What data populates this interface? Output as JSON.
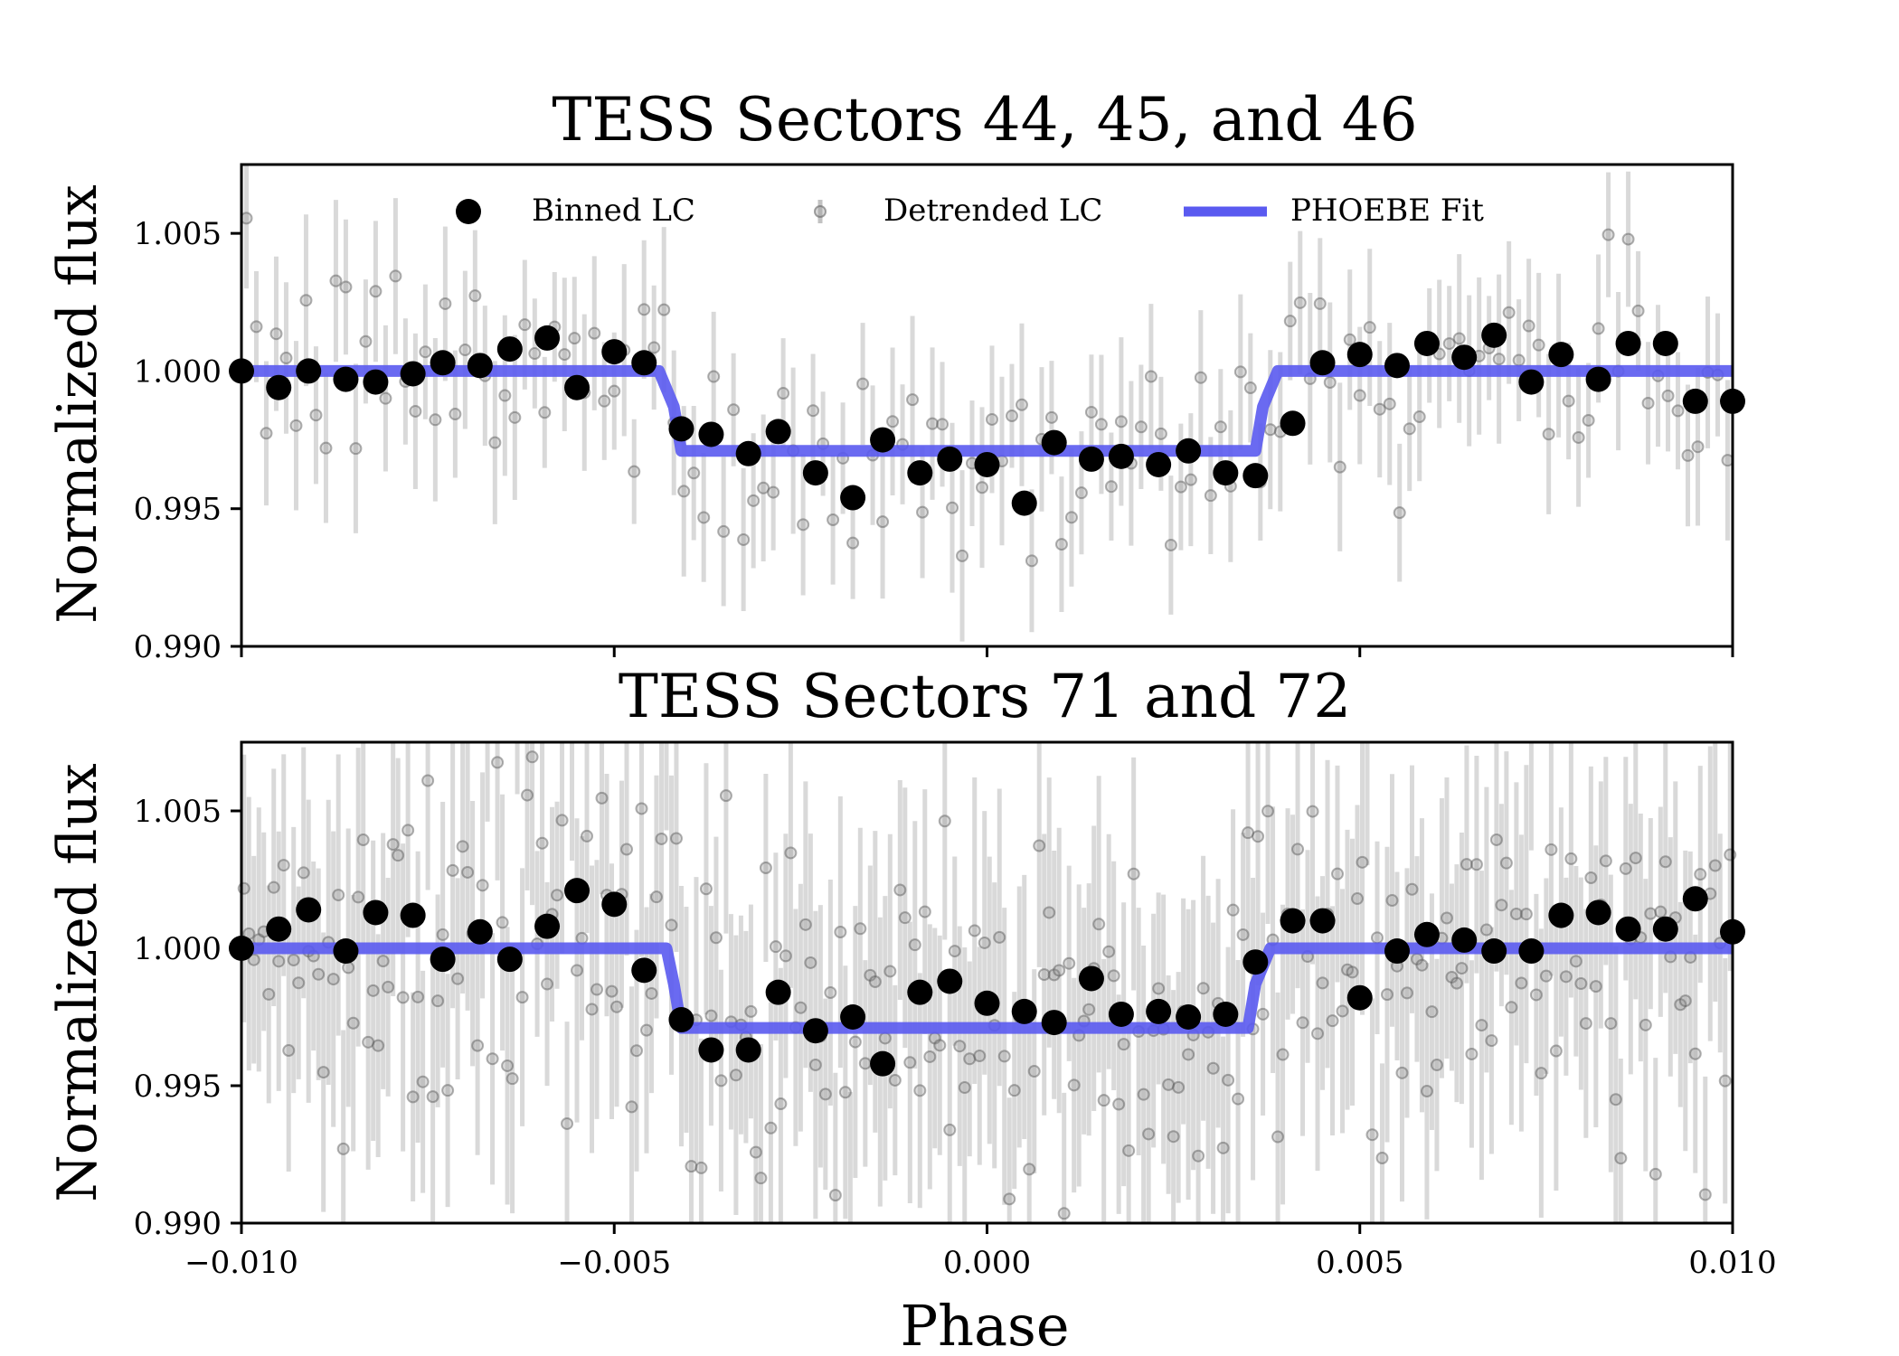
{
  "chart_data": [
    {
      "type": "scatter",
      "title": "TESS Sectors 44, 45, and 46",
      "xlabel": "",
      "ylabel": "Normalized flux",
      "xlim": [
        -0.01,
        0.01
      ],
      "ylim": [
        0.99,
        1.0075
      ],
      "yticks": [
        "0.990",
        "0.995",
        "1.000",
        "1.005"
      ],
      "yticks_values": [
        0.99,
        0.995,
        1.0,
        1.005
      ],
      "xticks_values": [
        -0.01,
        -0.005,
        0.0,
        0.005,
        0.01
      ],
      "legend": {
        "position": "top",
        "entries": [
          {
            "name": "Binned LC",
            "marker": "black-circle"
          },
          {
            "name": "Detrended LC",
            "marker": "gray-circle-errorbar"
          },
          {
            "name": "PHOEBE Fit",
            "marker": "blue-line"
          }
        ]
      },
      "series": [
        {
          "name": "PHOEBE Fit",
          "color": "#5a5af0",
          "x": [
            -0.01,
            -0.0044,
            -0.0042,
            -0.0041,
            0.0036,
            0.0037,
            0.0039,
            0.01
          ],
          "y": [
            1.0,
            1.0,
            0.9987,
            0.9971,
            0.9971,
            0.9987,
            1.0,
            1.0
          ]
        },
        {
          "name": "Binned LC",
          "color": "#000000",
          "x": [
            -0.01,
            -0.0095,
            -0.0091,
            -0.0086,
            -0.0082,
            -0.0077,
            -0.0073,
            -0.0068,
            -0.0064,
            -0.0059,
            -0.0055,
            -0.005,
            -0.0046,
            -0.0041,
            -0.0037,
            -0.0032,
            -0.0028,
            -0.0023,
            -0.0018,
            -0.0014,
            -0.0009,
            -0.0005,
            0.0,
            0.0005,
            0.0009,
            0.0014,
            0.0018,
            0.0023,
            0.0027,
            0.0032,
            0.0036,
            0.0041,
            0.0045,
            0.005,
            0.0055,
            0.0059,
            0.0064,
            0.0068,
            0.0073,
            0.0077,
            0.0082,
            0.0086,
            0.0091,
            0.0095,
            0.01
          ],
          "y": [
            1.0,
            0.9994,
            1.0,
            0.9997,
            0.9996,
            0.9999,
            1.0003,
            1.0002,
            1.0008,
            1.0012,
            0.9994,
            1.0007,
            1.0003,
            0.9979,
            0.9977,
            0.997,
            0.9978,
            0.9963,
            0.9954,
            0.9975,
            0.9963,
            0.9968,
            0.9966,
            0.9952,
            0.9974,
            0.9968,
            0.9969,
            0.9966,
            0.9971,
            0.9963,
            0.9962,
            0.9981,
            1.0003,
            1.0006,
            1.0002,
            1.001,
            1.0005,
            1.0013,
            0.9996,
            1.0006,
            0.9997,
            1.001,
            1.001,
            0.9989,
            0.9989
          ]
        },
        {
          "name": "Detrended LC",
          "color": "#8c8c8c",
          "n_points": 150,
          "typical_error": 0.0025
        }
      ]
    },
    {
      "type": "scatter",
      "title": "TESS Sectors 71 and 72",
      "xlabel": "Phase",
      "ylabel": "Normalized flux",
      "xlim": [
        -0.01,
        0.01
      ],
      "ylim": [
        0.99,
        1.0075
      ],
      "yticks": [
        "0.990",
        "0.995",
        "1.000",
        "1.005"
      ],
      "yticks_values": [
        0.99,
        0.995,
        1.0,
        1.005
      ],
      "xticks": [
        "−0.010",
        "−0.005",
        "0.000",
        "0.005",
        "0.010"
      ],
      "xticks_values": [
        -0.01,
        -0.005,
        0.0,
        0.005,
        0.01
      ],
      "series": [
        {
          "name": "PHOEBE Fit",
          "color": "#5a5af0",
          "x": [
            -0.01,
            -0.0043,
            -0.0042,
            -0.0041,
            0.0035,
            0.0036,
            0.0038,
            0.01
          ],
          "y": [
            1.0,
            1.0,
            0.9987,
            0.9971,
            0.9971,
            0.9987,
            1.0,
            1.0
          ]
        },
        {
          "name": "Binned LC",
          "color": "#000000",
          "x": [
            -0.01,
            -0.0095,
            -0.0091,
            -0.0086,
            -0.0082,
            -0.0077,
            -0.0073,
            -0.0068,
            -0.0064,
            -0.0059,
            -0.0055,
            -0.005,
            -0.0046,
            -0.0041,
            -0.0037,
            -0.0032,
            -0.0028,
            -0.0023,
            -0.0018,
            -0.0014,
            -0.0009,
            -0.0005,
            0.0,
            0.0005,
            0.0009,
            0.0014,
            0.0018,
            0.0023,
            0.0027,
            0.0032,
            0.0036,
            0.0041,
            0.0045,
            0.005,
            0.0055,
            0.0059,
            0.0064,
            0.0068,
            0.0073,
            0.0077,
            0.0082,
            0.0086,
            0.0091,
            0.0095,
            0.01
          ],
          "y": [
            1.0,
            1.0007,
            1.0014,
            0.9999,
            1.0013,
            1.0012,
            0.9996,
            1.0006,
            0.9996,
            1.0008,
            1.0021,
            1.0016,
            0.9992,
            0.9974,
            0.9963,
            0.9963,
            0.9984,
            0.997,
            0.9975,
            0.9958,
            0.9984,
            0.9988,
            0.998,
            0.9977,
            0.9973,
            0.9989,
            0.9976,
            0.9977,
            0.9975,
            0.9976,
            0.9995,
            1.001,
            1.001,
            0.9982,
            0.9999,
            1.0005,
            1.0003,
            0.9999,
            0.9999,
            1.0012,
            1.0013,
            1.0007,
            1.0007,
            1.0018,
            1.0006
          ]
        },
        {
          "name": "Detrended LC",
          "color": "#8c8c8c",
          "n_points": 300,
          "typical_error": 0.0045
        }
      ]
    }
  ]
}
